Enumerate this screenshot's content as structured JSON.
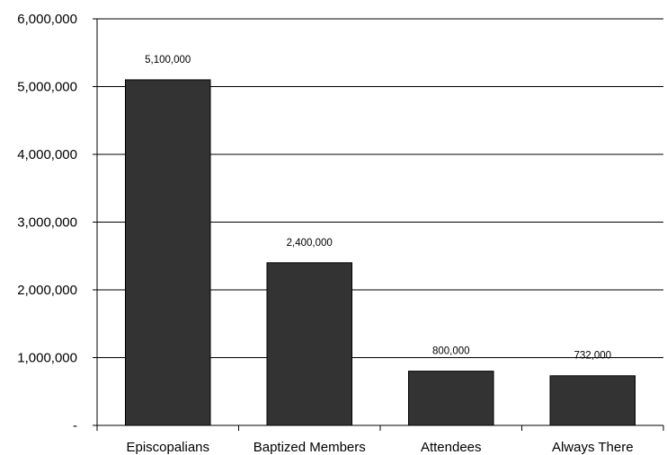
{
  "chart_data": {
    "type": "bar",
    "categories": [
      "Episcopalians",
      "Baptized Members",
      "Attendees",
      "Always There"
    ],
    "values": [
      5100000,
      2400000,
      800000,
      732000
    ],
    "data_labels": [
      "5,100,000",
      "2,400,000",
      "800,000",
      "732,000"
    ],
    "title": "",
    "xlabel": "",
    "ylabel": "",
    "ylim": [
      0,
      6000000
    ],
    "y_ticks": [
      0,
      1000000,
      2000000,
      3000000,
      4000000,
      5000000,
      6000000
    ],
    "y_tick_labels": [
      "-",
      "1,000,000",
      "2,000,000",
      "3,000,000",
      "4,000,000",
      "5,000,000",
      "6,000,000"
    ],
    "grid": true,
    "legend": "none",
    "colors": {
      "bar": "#333333",
      "bar_edge": "#000000",
      "grid": "#000000",
      "axis": "#000000",
      "background": "#ffffff"
    }
  }
}
